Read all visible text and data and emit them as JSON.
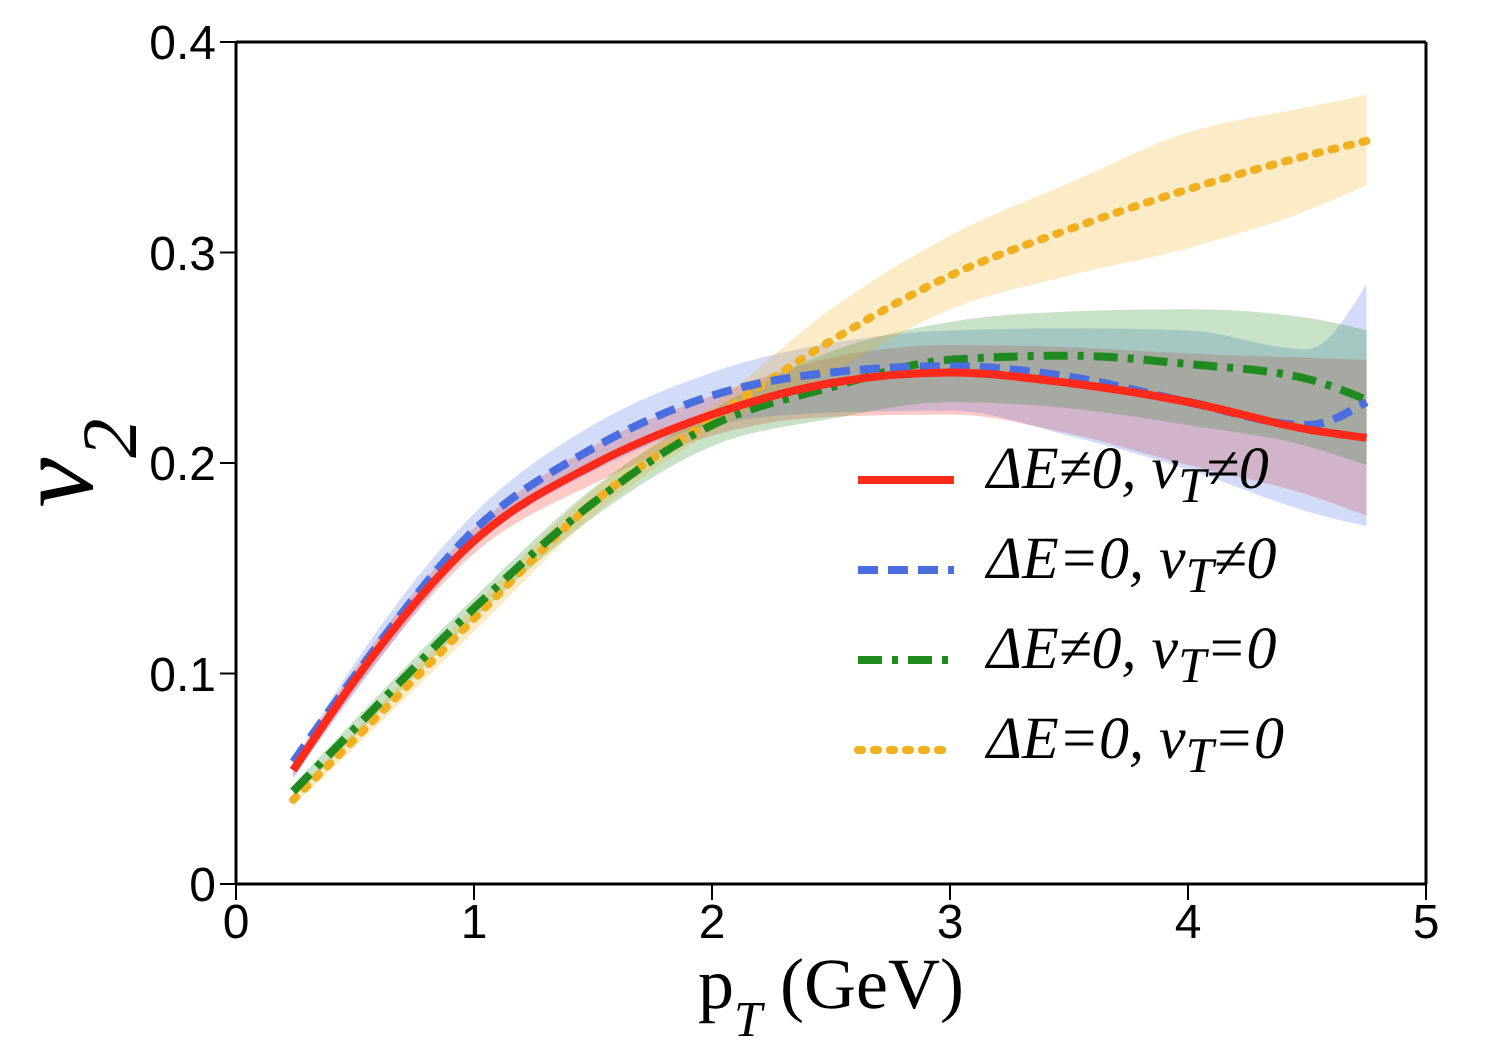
{
  "chart_data": {
    "type": "line",
    "xlabel": "p$_{T}$ (GeV)",
    "ylabel": "v$_{2}$",
    "x": [
      0.24,
      0.5,
      1,
      1.5,
      2,
      2.5,
      3,
      3.5,
      4,
      4.5,
      4.75
    ],
    "xlim": [
      0,
      5
    ],
    "xticks": [
      0,
      1,
      2,
      3,
      4,
      5
    ],
    "ylim": [
      0,
      0.4
    ],
    "yticks": [
      0,
      0.1,
      0.2,
      0.3,
      0.4
    ],
    "legend": "bottom right",
    "marker": "none",
    "series": [
      {
        "name": "ΔE≠0, v$_{T}$≠0",
        "color": "#ff2a1a",
        "line_style": "solid",
        "values": [
          0.054,
          0.097,
          0.163,
          0.199,
          0.223,
          0.238,
          0.243,
          0.238,
          0.229,
          0.216,
          0.212
        ],
        "lower": [
          0.051,
          0.092,
          0.157,
          0.19,
          0.213,
          0.222,
          0.223,
          0.214,
          0.199,
          0.185,
          0.175
        ],
        "upper": [
          0.057,
          0.102,
          0.169,
          0.208,
          0.232,
          0.25,
          0.256,
          0.255,
          0.252,
          0.25,
          0.249
        ]
      },
      {
        "name": "ΔE=0, v$_{T}$≠0",
        "color": "#4a6ee0",
        "line_style": "dashed",
        "values": [
          0.058,
          0.099,
          0.168,
          0.207,
          0.232,
          0.243,
          0.246,
          0.241,
          0.229,
          0.218,
          0.229
        ],
        "lower": [
          0.05,
          0.091,
          0.16,
          0.196,
          0.218,
          0.224,
          0.225,
          0.213,
          0.197,
          0.177,
          0.17
        ],
        "upper": [
          0.058,
          0.105,
          0.176,
          0.218,
          0.243,
          0.257,
          0.263,
          0.264,
          0.263,
          0.254,
          0.285
        ]
      },
      {
        "name": "ΔE≠0, v$_{T}$=0",
        "color": "#1f8a1f",
        "line_style": "dashdot",
        "values": [
          0.044,
          0.074,
          0.131,
          0.181,
          0.218,
          0.236,
          0.249,
          0.251,
          0.247,
          0.24,
          0.23
        ],
        "lower": [
          0.041,
          0.07,
          0.126,
          0.174,
          0.208,
          0.221,
          0.229,
          0.226,
          0.218,
          0.208,
          0.199
        ],
        "upper": [
          0.047,
          0.078,
          0.136,
          0.188,
          0.225,
          0.253,
          0.267,
          0.272,
          0.273,
          0.269,
          0.263
        ]
      },
      {
        "name": "ΔE=0, v$_{T}$=0",
        "color": "#f0b020",
        "line_style": "dotted",
        "values": [
          0.04,
          0.069,
          0.126,
          0.181,
          0.221,
          0.258,
          0.289,
          0.311,
          0.33,
          0.346,
          0.353
        ],
        "lower": [
          0.037,
          0.065,
          0.12,
          0.175,
          0.215,
          0.243,
          0.273,
          0.289,
          0.302,
          0.32,
          0.332
        ],
        "upper": [
          0.043,
          0.073,
          0.132,
          0.187,
          0.227,
          0.273,
          0.308,
          0.333,
          0.357,
          0.369,
          0.375
        ]
      }
    ]
  }
}
